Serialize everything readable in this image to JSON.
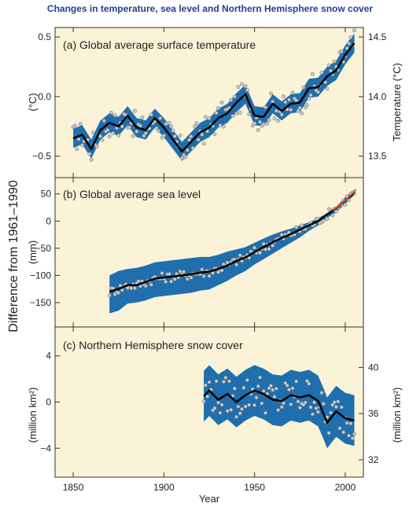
{
  "figure_title": "Changes in temperature, sea level and Northern Hemisphere snow cover",
  "shared_ylabel": "Difference from 1961–1990",
  "xlabel": "Year",
  "x_ticks": [
    "1850",
    "1900",
    "1950",
    "2000"
  ],
  "colors": {
    "panel_bg": "#fbf3d7",
    "uncertainty_band": "#1f6fae",
    "smoothed_line": "#000000",
    "recent_line": "#e05a2b",
    "points_fill": "#c9c9c9",
    "title_color": "#1f3f8f"
  },
  "chart_data": [
    {
      "type": "line",
      "title": "(a) Global average surface temperature",
      "ylabel_left": "(°C)",
      "ylabel_right": "Temperature (°C)",
      "yticks_left": [
        "0.5",
        "0.0",
        "−0.5"
      ],
      "yticks_right": [
        "14.5",
        "14.0",
        "13.5"
      ],
      "xlim": [
        1840,
        2010
      ],
      "ylim": [
        -0.68,
        0.58
      ],
      "x": [
        1850,
        1855,
        1860,
        1865,
        1870,
        1875,
        1880,
        1885,
        1890,
        1895,
        1900,
        1905,
        1910,
        1915,
        1920,
        1925,
        1930,
        1935,
        1940,
        1945,
        1950,
        1955,
        1960,
        1965,
        1970,
        1975,
        1980,
        1985,
        1990,
        1995,
        2000,
        2005
      ],
      "y": [
        -0.35,
        -0.32,
        -0.44,
        -0.28,
        -0.22,
        -0.25,
        -0.16,
        -0.26,
        -0.28,
        -0.18,
        -0.26,
        -0.36,
        -0.46,
        -0.38,
        -0.3,
        -0.26,
        -0.18,
        -0.14,
        -0.05,
        0.02,
        -0.16,
        -0.17,
        -0.06,
        -0.12,
        -0.06,
        -0.05,
        0.07,
        0.08,
        0.17,
        0.22,
        0.35,
        0.45
      ],
      "band_halfwidth": 0.08,
      "grid": false
    },
    {
      "type": "line",
      "title": "(b) Global average sea level",
      "ylabel_left": "(mm)",
      "yticks_left": [
        "50",
        "0",
        "−50",
        "−100",
        "−150"
      ],
      "xlim": [
        1840,
        2010
      ],
      "ylim": [
        -195,
        80
      ],
      "x": [
        1870,
        1875,
        1880,
        1885,
        1890,
        1895,
        1900,
        1905,
        1910,
        1915,
        1920,
        1925,
        1930,
        1935,
        1940,
        1945,
        1950,
        1955,
        1960,
        1965,
        1970,
        1975,
        1980,
        1985,
        1990,
        1995,
        2000,
        2005
      ],
      "y": [
        -130,
        -125,
        -118,
        -118,
        -112,
        -106,
        -104,
        -102,
        -100,
        -98,
        -95,
        -93,
        -88,
        -82,
        -73,
        -67,
        -57,
        -48,
        -39,
        -31,
        -24,
        -16,
        -8,
        0,
        12,
        24,
        38,
        53
      ],
      "band_upper": [
        -100,
        -92,
        -88,
        -86,
        -82,
        -76,
        -74,
        -72,
        -70,
        -68,
        -66,
        -66,
        -62,
        -56,
        -52,
        -48,
        -40,
        -32,
        -25,
        -19,
        -14,
        -8,
        -2,
        5,
        15,
        26,
        44,
        58
      ],
      "band_lower": [
        -170,
        -165,
        -152,
        -150,
        -146,
        -140,
        -138,
        -136,
        -134,
        -132,
        -128,
        -126,
        -118,
        -110,
        -100,
        -92,
        -80,
        -70,
        -60,
        -50,
        -40,
        -30,
        -18,
        -8,
        6,
        16,
        32,
        48
      ],
      "recent_x": [
        1993,
        2000,
        2006
      ],
      "recent_y": [
        20,
        38,
        58
      ],
      "grid": false
    },
    {
      "type": "line",
      "title": "(c) Northern Hemisphere snow cover",
      "ylabel_left": "(million km²)",
      "ylabel_right": "(million km²)",
      "yticks_left": [
        "4",
        "0",
        "−4"
      ],
      "yticks_right": [
        "40",
        "36",
        "32"
      ],
      "xlim": [
        1840,
        2010
      ],
      "ylim": [
        -6.5,
        6.5
      ],
      "x": [
        1922,
        1925,
        1930,
        1935,
        1940,
        1945,
        1950,
        1955,
        1960,
        1965,
        1970,
        1975,
        1980,
        1985,
        1988,
        1990,
        1995,
        2000,
        2005
      ],
      "y": [
        0.5,
        1.0,
        0.2,
        0.7,
        0.0,
        0.6,
        1.0,
        0.7,
        0.2,
        0.1,
        0.6,
        0.4,
        0.6,
        0.1,
        -1.0,
        -1.8,
        -0.8,
        -1.4,
        -1.6
      ],
      "band_halfwidth": 2.2,
      "grid": false
    }
  ]
}
